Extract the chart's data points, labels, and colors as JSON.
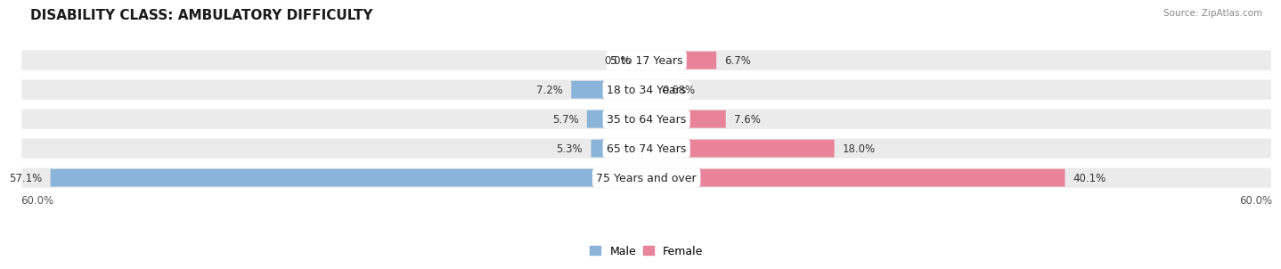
{
  "title": "DISABILITY CLASS: AMBULATORY DIFFICULTY",
  "source": "Source: ZipAtlas.com",
  "categories": [
    "5 to 17 Years",
    "18 to 34 Years",
    "35 to 64 Years",
    "65 to 74 Years",
    "75 Years and over"
  ],
  "male_values": [
    0.0,
    7.2,
    5.7,
    5.3,
    57.1
  ],
  "female_values": [
    6.7,
    0.68,
    7.6,
    18.0,
    40.1
  ],
  "male_labels": [
    "0.0%",
    "7.2%",
    "5.7%",
    "5.3%",
    "57.1%"
  ],
  "female_labels": [
    "6.7%",
    "0.68%",
    "7.6%",
    "18.0%",
    "40.1%"
  ],
  "male_color": "#8ab4d9",
  "female_color": "#e8839a",
  "row_bg_color": "#ebebeb",
  "max_val": 60.0,
  "x_tick_left": "60.0%",
  "x_tick_right": "60.0%",
  "title_fontsize": 11,
  "label_fontsize": 8.5,
  "cat_fontsize": 9.0,
  "legend_fontsize": 9,
  "background_color": "#ffffff"
}
